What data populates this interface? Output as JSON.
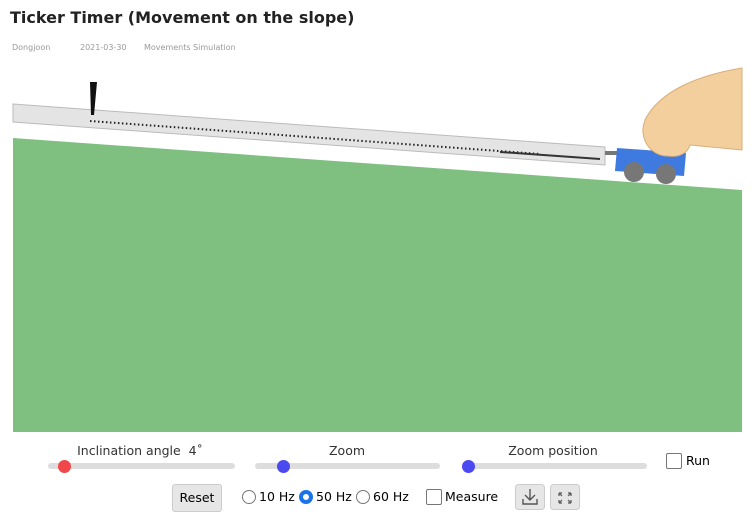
{
  "header": {
    "title": "Ticker Timer (Movement on the slope)",
    "author": "Dongjoon",
    "date": "2021-03-30",
    "category": "Movements Simulation"
  },
  "controls": {
    "inclination_label": "Inclination angle",
    "inclination_value": "4˚",
    "zoom_label": "Zoom",
    "zoom_position_label": "Zoom position",
    "run": "Run",
    "reset": "Reset",
    "freq_options": [
      "10 Hz",
      "50 Hz",
      "60 Hz"
    ],
    "measure": "Measure"
  }
}
